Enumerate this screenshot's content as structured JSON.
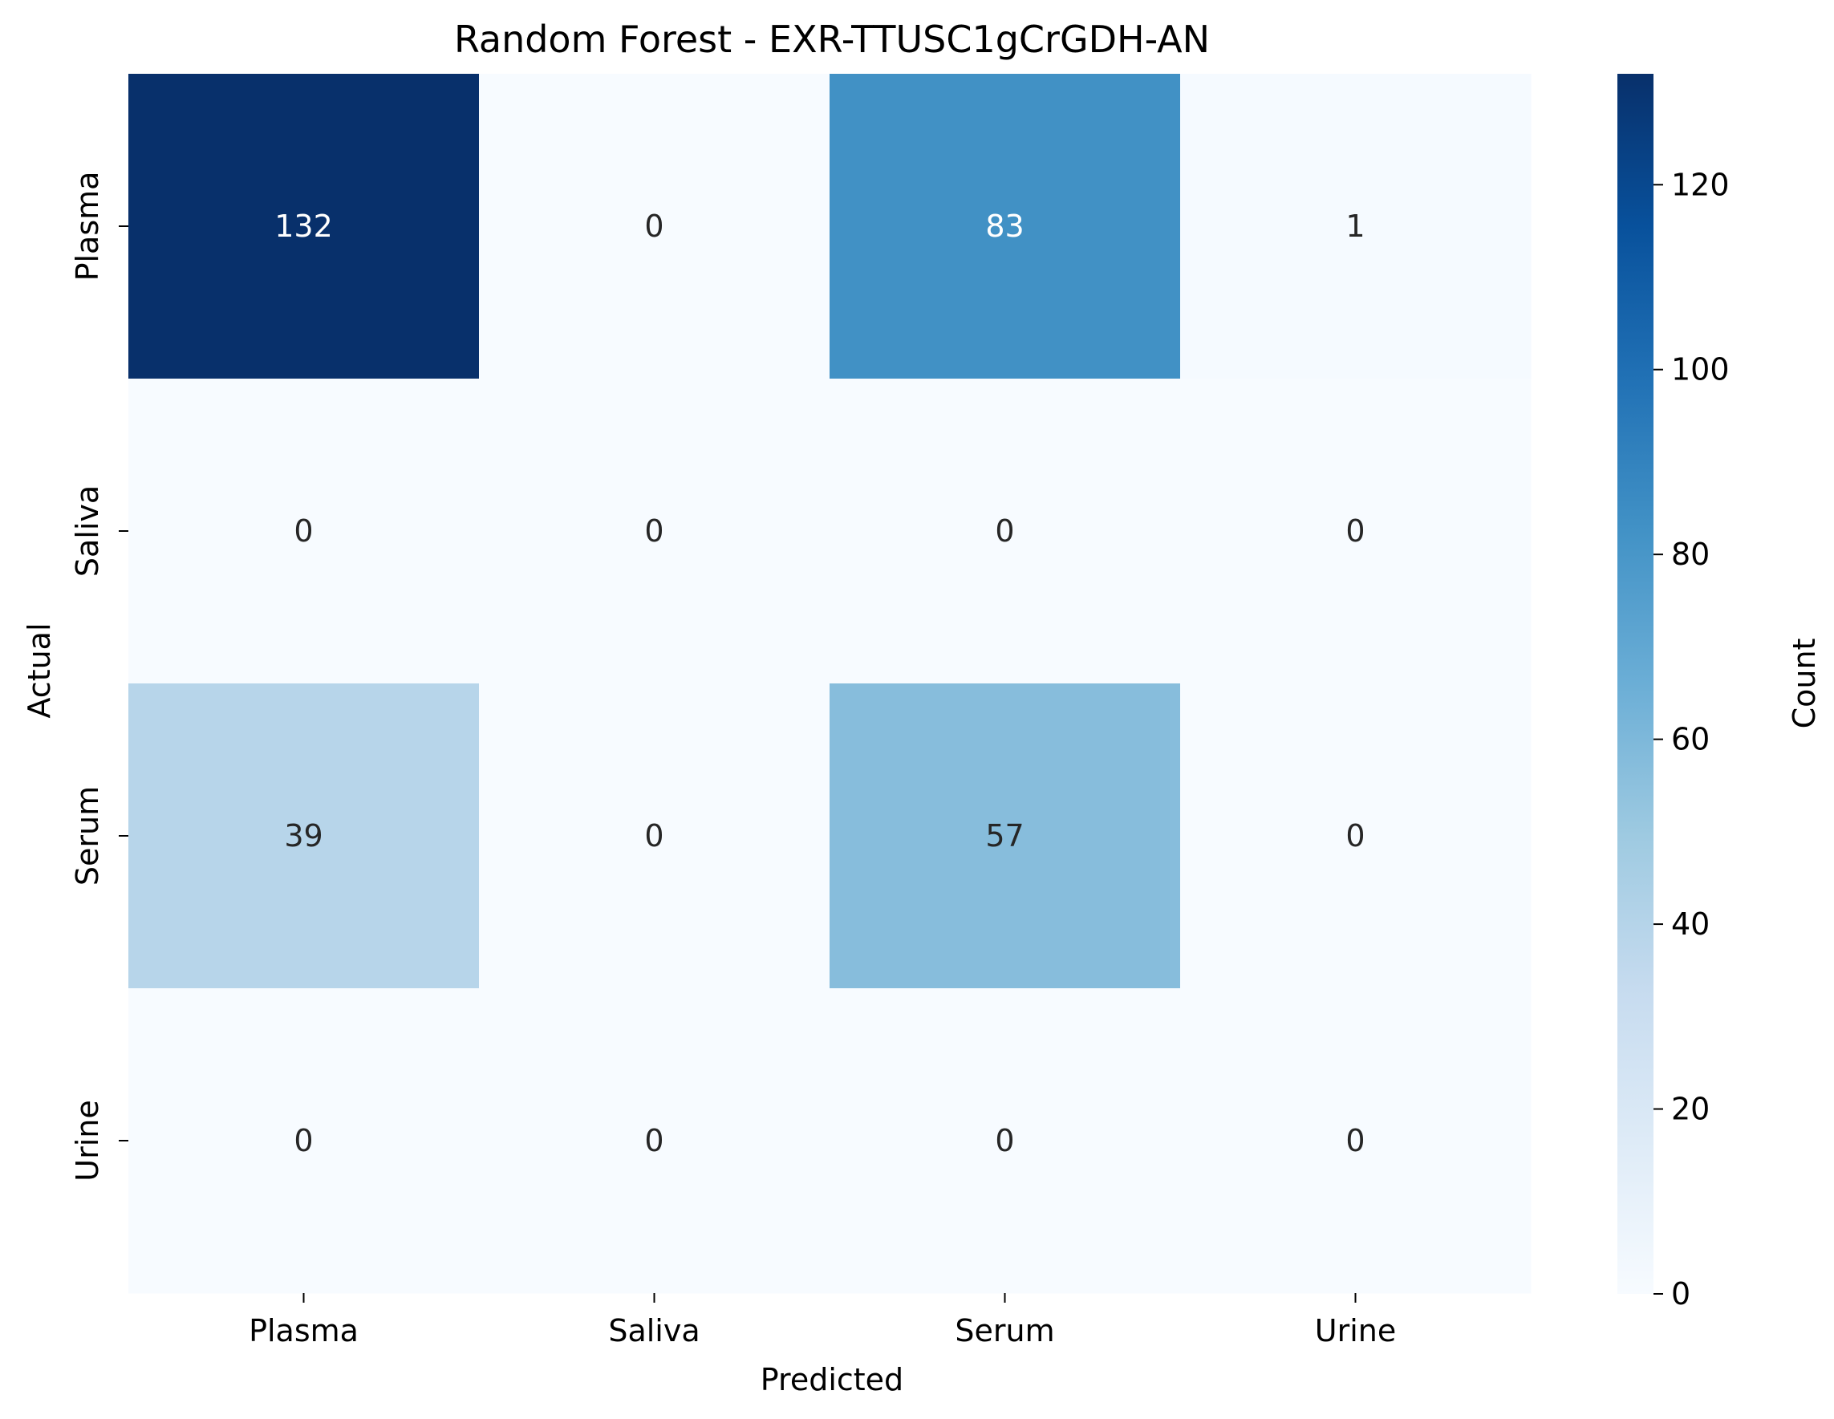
{
  "chart_data": {
    "type": "heatmap",
    "title": "Random Forest - EXR-TTUSC1gCrGDH-AN",
    "xlabel": "Predicted",
    "ylabel": "Actual",
    "x_categories": [
      "Plasma",
      "Saliva",
      "Serum",
      "Urine"
    ],
    "y_categories": [
      "Plasma",
      "Saliva",
      "Serum",
      "Urine"
    ],
    "values": [
      [
        132,
        0,
        83,
        1
      ],
      [
        0,
        0,
        0,
        0
      ],
      [
        39,
        0,
        57,
        0
      ],
      [
        0,
        0,
        0,
        0
      ]
    ],
    "colorbar": {
      "label": "Count",
      "range": [
        0,
        132
      ],
      "ticks": [
        0,
        20,
        40,
        60,
        80,
        100,
        120
      ],
      "colormap": "Blues",
      "colors": [
        "#f7fbff",
        "#deebf7",
        "#c6dbef",
        "#9ecae1",
        "#6baed6",
        "#4292c6",
        "#2171b5",
        "#08519c",
        "#08306b"
      ]
    }
  }
}
